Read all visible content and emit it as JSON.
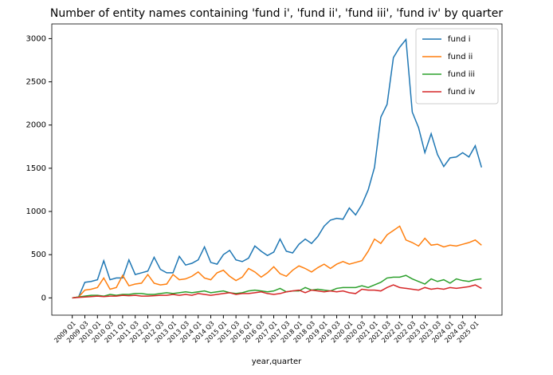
{
  "chart_data": {
    "type": "line",
    "title": "Number of entity names containing 'fund i', 'fund ii', 'fund iii', 'fund iv' by quarter",
    "x_label": "year,quarter",
    "categories": [
      "2009 Q1",
      null,
      "2009 Q3",
      null,
      "2010 Q1",
      null,
      "2010 Q3",
      null,
      "2011 Q1",
      null,
      "2011 Q3",
      null,
      "2012 Q1",
      null,
      "2012 Q3",
      null,
      "2013 Q1",
      null,
      "2013 Q3",
      null,
      "2014 Q1",
      null,
      "2014 Q3",
      null,
      "2015 Q1",
      null,
      "2015 Q3",
      null,
      "2016 Q1",
      null,
      "2016 Q3",
      null,
      "2017 Q1",
      null,
      "2017 Q3",
      null,
      "2018 Q1",
      null,
      "2018 Q3",
      null,
      "2019 Q1",
      null,
      "2019 Q3",
      null,
      "2020 Q1",
      null,
      "2020 Q3",
      null,
      "2021 Q1",
      null,
      "2021 Q3",
      null,
      "2022 Q1",
      null,
      "2022 Q3",
      null,
      "2023 Q1",
      null,
      "2023 Q3",
      null,
      "2024 Q1",
      null,
      "2024 Q3",
      null,
      "2025 Q1",
      null
    ],
    "series": [
      {
        "name": "fund i",
        "color": "#1f77b4",
        "values": [
          0,
          10,
          180,
          190,
          210,
          430,
          210,
          230,
          230,
          440,
          270,
          290,
          310,
          470,
          330,
          290,
          290,
          480,
          380,
          400,
          440,
          590,
          410,
          390,
          500,
          550,
          440,
          420,
          460,
          600,
          540,
          490,
          530,
          680,
          540,
          520,
          620,
          680,
          630,
          710,
          830,
          900,
          920,
          910,
          1040,
          960,
          1080,
          1250,
          1510,
          2090,
          2240,
          2780,
          2900,
          2990,
          2150,
          1970,
          1680,
          1900,
          1660,
          1520,
          1620,
          1630,
          1680,
          1630,
          1760,
          1510
        ]
      },
      {
        "name": "fund ii",
        "color": "#ff7f0e",
        "values": [
          0,
          10,
          90,
          100,
          120,
          230,
          100,
          120,
          260,
          140,
          160,
          170,
          270,
          170,
          150,
          160,
          270,
          210,
          220,
          250,
          300,
          230,
          210,
          290,
          320,
          250,
          200,
          240,
          340,
          300,
          240,
          290,
          360,
          280,
          250,
          320,
          370,
          340,
          300,
          350,
          390,
          340,
          390,
          420,
          390,
          410,
          430,
          540,
          680,
          630,
          730,
          780,
          830,
          670,
          640,
          600,
          690,
          610,
          620,
          590,
          610,
          600,
          620,
          640,
          670,
          610
        ]
      },
      {
        "name": "fund iii",
        "color": "#2ca02c",
        "values": [
          0,
          10,
          20,
          30,
          30,
          20,
          40,
          30,
          40,
          40,
          50,
          50,
          40,
          40,
          50,
          60,
          50,
          60,
          70,
          60,
          70,
          80,
          60,
          70,
          80,
          60,
          50,
          60,
          80,
          90,
          80,
          70,
          80,
          110,
          70,
          80,
          80,
          120,
          90,
          100,
          90,
          80,
          110,
          120,
          120,
          120,
          140,
          120,
          150,
          180,
          230,
          240,
          240,
          260,
          220,
          190,
          160,
          220,
          190,
          210,
          170,
          220,
          200,
          190,
          210,
          220
        ]
      },
      {
        "name": "fund iv",
        "color": "#d62728",
        "values": [
          0,
          5,
          10,
          15,
          20,
          15,
          20,
          20,
          30,
          25,
          30,
          20,
          20,
          25,
          30,
          30,
          40,
          30,
          40,
          30,
          50,
          40,
          30,
          40,
          50,
          60,
          40,
          50,
          50,
          60,
          70,
          50,
          40,
          50,
          70,
          80,
          90,
          60,
          90,
          80,
          70,
          80,
          70,
          80,
          60,
          50,
          100,
          90,
          90,
          80,
          120,
          150,
          120,
          110,
          100,
          90,
          120,
          100,
          110,
          100,
          120,
          110,
          120,
          130,
          150,
          110
        ]
      }
    ],
    "ylim": [
      -200,
      3170
    ],
    "yticks": [
      0,
      500,
      1000,
      1500,
      2000,
      2500,
      3000
    ],
    "legend": "upper right",
    "grid": false
  }
}
